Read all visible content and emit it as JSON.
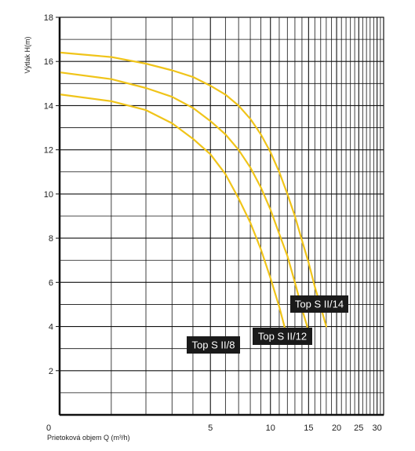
{
  "chart_data": {
    "type": "line",
    "title": "",
    "xlabel": "Prietoková objem Q (m³/h)",
    "ylabel": "Výtlak H(m)",
    "x_scale": "log",
    "ylim": [
      0,
      18
    ],
    "xlim": [
      0,
      32
    ],
    "x_ticks": [
      0,
      5,
      10,
      15,
      20,
      25,
      30
    ],
    "x_tick_labels": [
      "0",
      "5",
      "10",
      "15",
      "20",
      "25",
      "30"
    ],
    "y_ticks": [
      2,
      4,
      6,
      8,
      10,
      12,
      14,
      16,
      18
    ],
    "y_tick_labels": [
      "2",
      "4",
      "6",
      "8",
      "10",
      "12",
      "14",
      "16",
      "18"
    ],
    "grid": true,
    "series_color": "#f0c419",
    "label_bg": "#1a1a1a",
    "series": [
      {
        "name": "Top S II/8",
        "x": [
          0.1,
          1,
          2,
          3,
          4,
          5,
          6,
          7,
          8,
          9,
          10,
          11,
          12
        ],
        "y": [
          14.5,
          14.2,
          13.8,
          13.2,
          12.5,
          11.8,
          10.9,
          9.8,
          8.7,
          7.5,
          6.2,
          4.9,
          3.5
        ]
      },
      {
        "name": "Top S II/12",
        "x": [
          0.1,
          1,
          2,
          3,
          4,
          5,
          6,
          7,
          8,
          9,
          10,
          11,
          12,
          13,
          14,
          15
        ],
        "y": [
          15.5,
          15.2,
          14.8,
          14.4,
          13.9,
          13.3,
          12.7,
          12.0,
          11.2,
          10.3,
          9.3,
          8.2,
          7.2,
          6.0,
          4.8,
          3.8
        ]
      },
      {
        "name": "Top S II/14",
        "x": [
          0.1,
          1,
          2,
          3,
          4,
          5,
          6,
          7,
          8,
          9,
          10,
          11,
          12,
          13,
          14,
          15,
          16,
          17,
          18
        ],
        "y": [
          16.4,
          16.2,
          15.9,
          15.6,
          15.3,
          14.9,
          14.5,
          14.0,
          13.4,
          12.7,
          11.9,
          11.0,
          10.0,
          9.0,
          7.9,
          6.9,
          5.8,
          4.9,
          4.0
        ]
      }
    ]
  }
}
